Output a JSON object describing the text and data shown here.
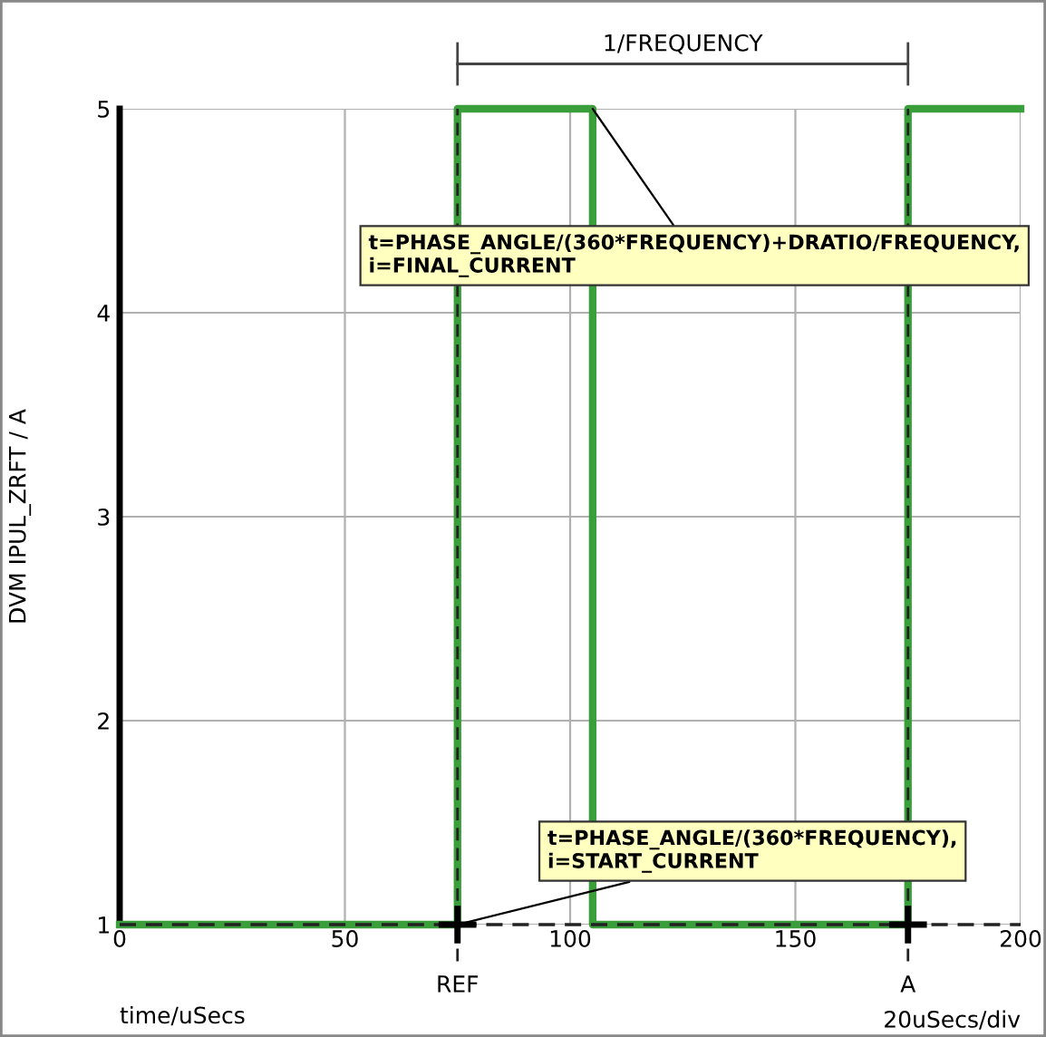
{
  "chart_data": {
    "type": "step",
    "xlabel": "time/uSecs",
    "ylabel": "DVM IPUL_ZRFT / A",
    "series": [
      {
        "color": "#3a9e3a",
        "x": [
          0,
          75,
          105,
          175,
          200
        ],
        "values": [
          1,
          5,
          1,
          5,
          5
        ],
        "line_style": "solid"
      },
      {
        "type": "line",
        "color": "#222222",
        "x": [
          0,
          200
        ],
        "values": [
          1,
          1
        ],
        "line_style": "dashed"
      }
    ],
    "ref_lines": [
      {
        "axis": "x",
        "value": 75,
        "label": "REF",
        "color": "#222222",
        "line_style": "dashed"
      },
      {
        "axis": "x",
        "value": 175,
        "label": "A",
        "color": "#222222",
        "line_style": "dashed"
      }
    ],
    "annotations": [
      "1/FREQUENCY",
      {
        "text": "t=PHASE_ANGLE/(360*FREQUENCY)+DRATIO/FREQUENCY,\ni=FINAL_CURRENT",
        "x": 105,
        "y": 5
      },
      {
        "text": "t=PHASE_ANGLE/(360*FREQUENCY),\ni=START_CURRENT",
        "x": 75,
        "y": 1
      },
      "20uSecs/div"
    ],
    "xlim": [
      0,
      200
    ],
    "ylim": [
      1,
      5
    ],
    "xticks": [
      0,
      50,
      100,
      150,
      200
    ],
    "yticks": [
      1,
      2,
      3,
      4,
      5
    ],
    "grid": true
  }
}
